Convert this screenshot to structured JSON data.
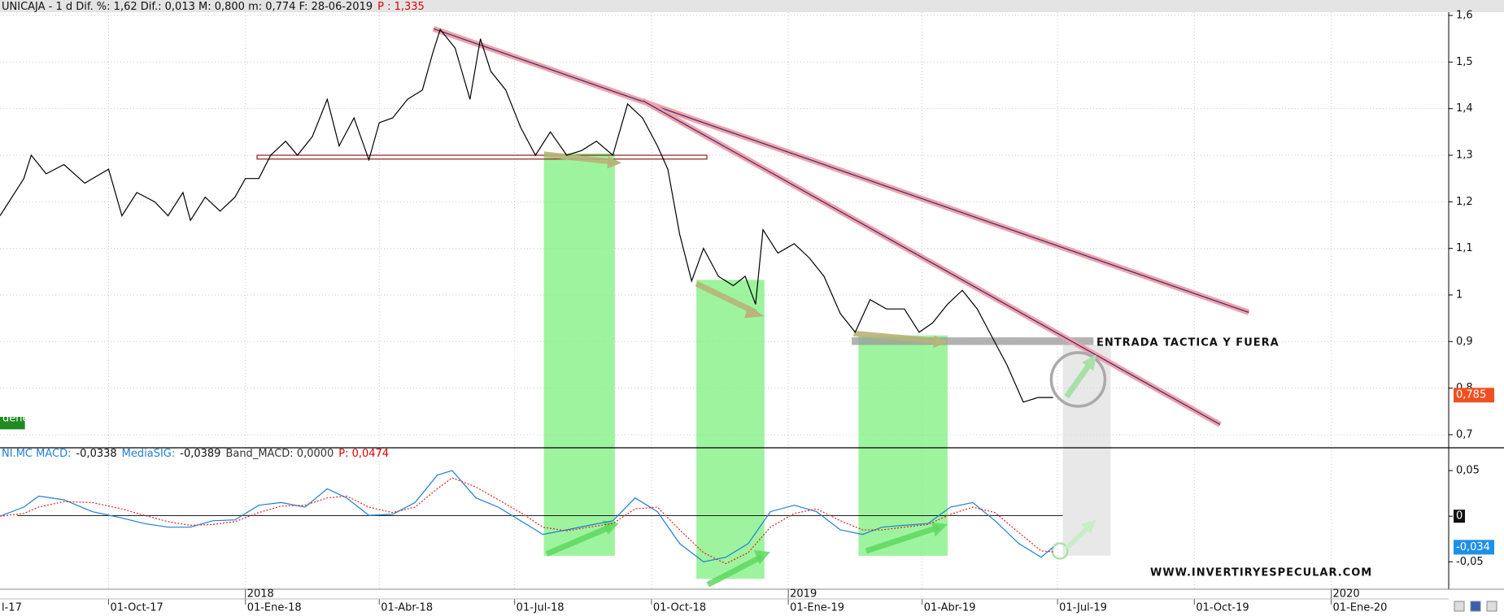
{
  "chart_data": [
    {
      "type": "line",
      "title": "UNICAJA -  1 d Dif. %: 1,62 Dif.: 0,013 M: 0,800 m: 0,774 F: 28-06-2019",
      "title_price": "P : 1,335",
      "xlim": [
        "2017-07-20",
        "2020-03-20"
      ],
      "ylim": [
        0.672,
        1.607
      ],
      "yticks": [
        {
          "value": 0.7,
          "label": "0,7"
        },
        {
          "value": 0.8,
          "label": "0,8"
        },
        {
          "value": 0.9,
          "label": "0,9"
        },
        1,
        {
          "value": 1.1,
          "label": "1,1"
        },
        {
          "value": 1.2,
          "label": "1,2"
        },
        {
          "value": 1.3,
          "label": "1,3"
        },
        {
          "value": 1.4,
          "label": "1,4"
        },
        {
          "value": 1.5,
          "label": "1,5"
        },
        {
          "value": 1.6,
          "label": "1,6"
        }
      ],
      "grid": true,
      "x": [
        "2017-07-20",
        "2017-07-30",
        "2017-08-05",
        "2017-08-10",
        "2017-08-20",
        "2017-09-01",
        "2017-09-15",
        "2017-10-01",
        "2017-10-10",
        "2017-10-20",
        "2017-11-01",
        "2017-11-10",
        "2017-11-20",
        "2017-11-25",
        "2017-12-05",
        "2017-12-15",
        "2017-12-25",
        "2018-01-01",
        "2018-01-10",
        "2018-01-18",
        "2018-01-28",
        "2018-02-05",
        "2018-02-15",
        "2018-02-25",
        "2018-03-05",
        "2018-03-15",
        "2018-03-25",
        "2018-04-01",
        "2018-04-10",
        "2018-04-20",
        "2018-04-30",
        "2018-05-07",
        "2018-05-12",
        "2018-05-22",
        "2018-06-01",
        "2018-06-08",
        "2018-06-15",
        "2018-06-25",
        "2018-07-05",
        "2018-07-15",
        "2018-07-25",
        "2018-08-05",
        "2018-08-15",
        "2018-08-25",
        "2018-09-05",
        "2018-09-15",
        "2018-09-25",
        "2018-10-05",
        "2018-10-12",
        "2018-10-20",
        "2018-10-28",
        "2018-11-05",
        "2018-11-15",
        "2018-11-25",
        "2018-12-03",
        "2018-12-10",
        "2018-12-15",
        "2018-12-25",
        "2019-01-05",
        "2019-01-15",
        "2019-01-25",
        "2019-02-05",
        "2019-02-15",
        "2019-02-25",
        "2019-03-08",
        "2019-03-20",
        "2019-03-30",
        "2019-04-08",
        "2019-04-18",
        "2019-04-28",
        "2019-05-08",
        "2019-05-18",
        "2019-05-28",
        "2019-06-08",
        "2019-06-18",
        "2019-06-28"
      ],
      "series": [
        {
          "color": "#000000",
          "values": [
            1.17,
            1.22,
            1.25,
            1.3,
            1.26,
            1.28,
            1.24,
            1.27,
            1.17,
            1.22,
            1.2,
            1.17,
            1.22,
            1.16,
            1.21,
            1.18,
            1.21,
            1.25,
            1.25,
            1.3,
            1.33,
            1.3,
            1.34,
            1.42,
            1.32,
            1.38,
            1.29,
            1.37,
            1.38,
            1.42,
            1.44,
            1.52,
            1.57,
            1.53,
            1.42,
            1.55,
            1.48,
            1.44,
            1.36,
            1.3,
            1.35,
            1.3,
            1.31,
            1.33,
            1.3,
            1.41,
            1.38,
            1.32,
            1.27,
            1.13,
            1.03,
            1.1,
            1.04,
            1.02,
            1.04,
            0.98,
            1.14,
            1.09,
            1.11,
            1.08,
            1.04,
            0.96,
            0.92,
            0.99,
            0.97,
            0.97,
            0.92,
            0.94,
            0.98,
            1.01,
            0.97,
            0.91,
            0.85,
            0.77,
            0.78,
            0.78
          ]
        }
      ],
      "last_value": {
        "value": 0.785,
        "label": "0,785"
      },
      "legend_tag": "denes",
      "annotations": [
        "ENTRADA TACTICA Y FUERA"
      ]
    },
    {
      "type": "line",
      "header": [
        "NI.MC MACD:",
        "-0,0338",
        "MediaSIG:",
        "-0,0389",
        "Band_MACD: 0,0000",
        "P: 0,0474"
      ],
      "xlim": [
        "2017-07-20",
        "2020-03-20"
      ],
      "ylim": [
        -0.08,
        0.075
      ],
      "yticks": [
        {
          "value": 0.05,
          "label": "0,05"
        },
        0,
        {
          "value": -0.05,
          "label": "-0,05"
        }
      ],
      "xticks": [
        {
          "value": "2017-07-01",
          "label": "l-17"
        },
        {
          "value": "2017-10-01",
          "label": "01-Oct-17"
        },
        {
          "value": "2018-01-01",
          "label": "01-Ene-18"
        },
        {
          "value": "2018-04-01",
          "label": "01-Abr-18"
        },
        {
          "value": "2018-07-01",
          "label": "01-Jul-18"
        },
        {
          "value": "2018-10-01",
          "label": "01-Oct-18"
        },
        {
          "value": "2019-01-01",
          "label": "01-Ene-19"
        },
        {
          "value": "2019-04-01",
          "label": "01-Abr-19"
        },
        {
          "value": "2019-07-01",
          "label": "01-Jul-19"
        },
        {
          "value": "2019-10-01",
          "label": "01-Oct-19"
        },
        {
          "value": "2020-01-01",
          "label": "01-Ene-20"
        }
      ],
      "year_labels": [
        {
          "value": "2018-01-01",
          "label": "2018"
        },
        {
          "value": "2019-01-01",
          "label": "2019"
        },
        {
          "value": "2020-01-01",
          "label": "2020"
        }
      ],
      "x": [
        "2017-07-20",
        "2017-08-05",
        "2017-08-15",
        "2017-09-01",
        "2017-09-20",
        "2017-10-10",
        "2017-10-25",
        "2017-11-10",
        "2017-11-25",
        "2017-12-10",
        "2017-12-25",
        "2018-01-10",
        "2018-01-25",
        "2018-02-10",
        "2018-02-25",
        "2018-03-10",
        "2018-03-25",
        "2018-04-10",
        "2018-04-25",
        "2018-05-10",
        "2018-05-20",
        "2018-06-05",
        "2018-06-20",
        "2018-07-05",
        "2018-07-20",
        "2018-08-05",
        "2018-08-20",
        "2018-09-05",
        "2018-09-20",
        "2018-10-05",
        "2018-10-20",
        "2018-11-05",
        "2018-11-20",
        "2018-12-05",
        "2018-12-20",
        "2019-01-05",
        "2019-01-20",
        "2019-02-05",
        "2019-02-20",
        "2019-03-05",
        "2019-03-20",
        "2019-04-05",
        "2019-04-20",
        "2019-05-05",
        "2019-05-20",
        "2019-06-05",
        "2019-06-20",
        "2019-06-28"
      ],
      "series": [
        {
          "color": "#1e7fd6",
          "values": [
            0,
            0.01,
            0.022,
            0.018,
            0.005,
            -0.002,
            -0.008,
            -0.012,
            -0.012,
            -0.005,
            -0.004,
            0.012,
            0.015,
            0.01,
            0.03,
            0.02,
            0.001,
            0.002,
            0.015,
            0.045,
            0.05,
            0.02,
            0.01,
            -0.005,
            -0.02,
            -0.015,
            -0.01,
            -0.005,
            0.02,
            0.005,
            -0.03,
            -0.05,
            -0.045,
            -0.03,
            0.005,
            0.012,
            0.005,
            -0.015,
            -0.02,
            -0.012,
            -0.01,
            -0.008,
            0.01,
            0.015,
            -0.005,
            -0.03,
            -0.045,
            -0.034
          ]
        },
        {
          "color": "#e02020",
          "dashed": true,
          "values": [
            0,
            0.003,
            0.01,
            0.016,
            0.015,
            0.008,
            0.001,
            -0.006,
            -0.01,
            -0.009,
            -0.006,
            0.004,
            0.011,
            0.012,
            0.02,
            0.022,
            0.01,
            0.004,
            0.01,
            0.03,
            0.042,
            0.032,
            0.018,
            0.004,
            -0.012,
            -0.016,
            -0.012,
            -0.008,
            0.008,
            0.01,
            -0.015,
            -0.04,
            -0.052,
            -0.04,
            -0.012,
            0.003,
            0.008,
            -0.005,
            -0.015,
            -0.015,
            -0.012,
            -0.009,
            0.002,
            0.01,
            0.004,
            -0.018,
            -0.038,
            -0.039
          ]
        }
      ],
      "zero_tag": 0,
      "last_value": {
        "value": -0.034,
        "label": "-0,034"
      },
      "annotations": [
        "WWW.INVERTIRYESPECULAR.COM"
      ]
    }
  ]
}
